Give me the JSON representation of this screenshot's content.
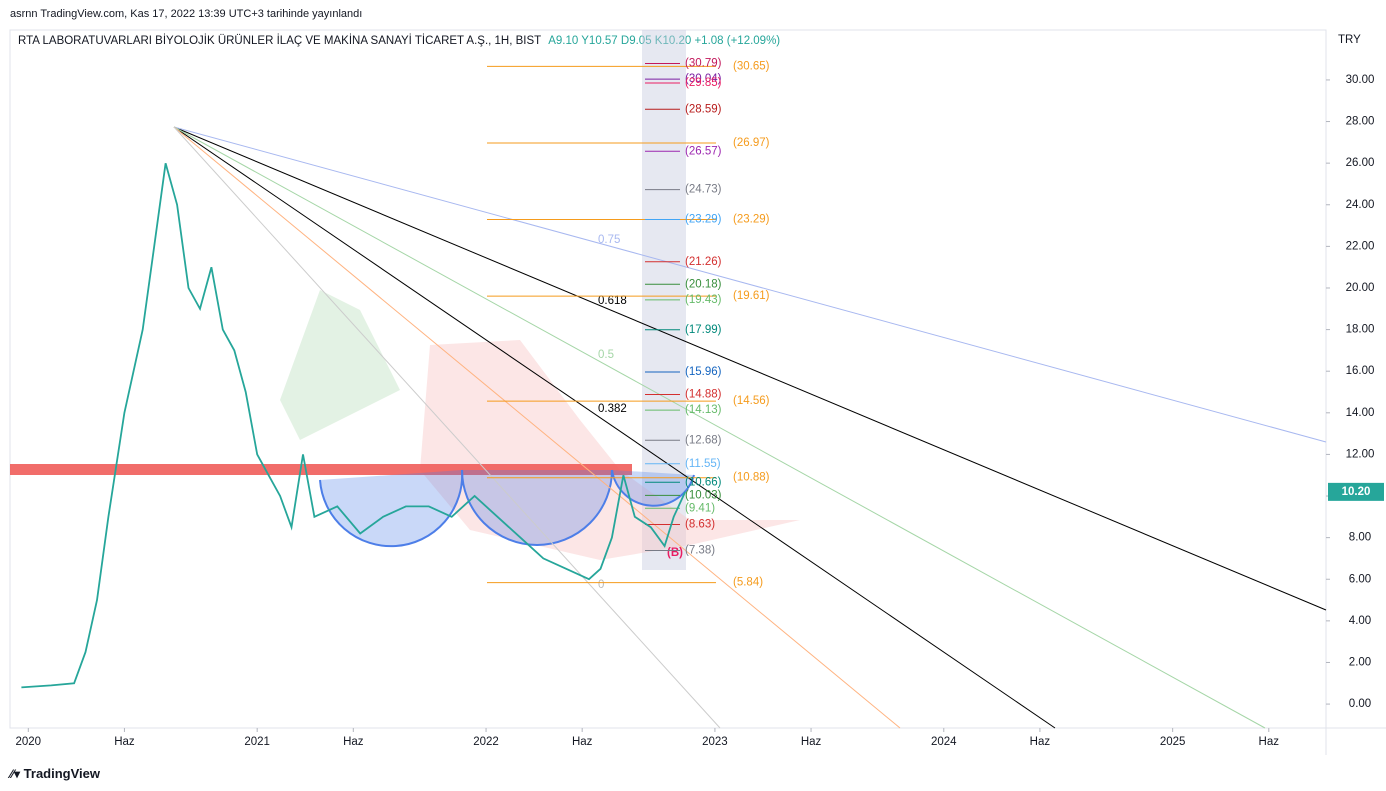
{
  "header": {
    "published": "asrnn TradingView.com, Kas 17, 2022 13:39 UTC+3 tarihinde yayınlandı",
    "symbol": "RTA LABORATUVARLARI BİYOLOJİK ÜRÜNLER İLAÇ VE MAKİNA SANAYİ TİCARET A.Ş., 1H, BIST",
    "ohlc": [
      "A9.10",
      "Y10.57",
      "D9.05",
      "K10.20",
      "+1.08 (+12.09%)"
    ]
  },
  "footer": {
    "brand": "TradingView"
  },
  "chart_data": {
    "type": "line",
    "currency": "TRY",
    "x": [
      2019.97,
      2020.1,
      2020.2,
      2020.25,
      2020.3,
      2020.35,
      2020.42,
      2020.5,
      2020.55,
      2020.6,
      2020.65,
      2020.7,
      2020.75,
      2020.8,
      2020.85,
      2020.9,
      2020.95,
      2021.0,
      2021.05,
      2021.1,
      2021.15,
      2021.2,
      2021.25,
      2021.35,
      2021.45,
      2021.55,
      2021.65,
      2021.75,
      2021.85,
      2021.95,
      2022.05,
      2022.15,
      2022.25,
      2022.35,
      2022.45,
      2022.5,
      2022.55,
      2022.6,
      2022.65,
      2022.72,
      2022.78,
      2022.82,
      2022.87
    ],
    "series": [
      {
        "name": "RTA",
        "color": "#26a69a",
        "values": [
          0.8,
          0.9,
          1.0,
          2.5,
          5,
          9,
          14,
          18,
          22,
          26,
          24,
          20,
          19,
          21,
          18,
          17,
          15,
          12,
          11,
          10,
          8.5,
          12,
          9,
          9.5,
          8.2,
          9,
          9.5,
          9.5,
          9,
          10,
          9,
          8,
          7,
          6.5,
          6,
          6.5,
          8,
          11,
          9,
          8.5,
          7.6,
          9,
          10.2
        ]
      }
    ],
    "last_price": {
      "value": 10.2,
      "label": "10.20",
      "color": "#26a69a"
    },
    "xlim": [
      2019.92,
      2025.67
    ],
    "xticks": [
      {
        "value": 2020,
        "label": "2020"
      },
      {
        "value": 2020.42,
        "label": "Haz"
      },
      {
        "value": 2021,
        "label": "2021"
      },
      {
        "value": 2021.42,
        "label": "Haz"
      },
      {
        "value": 2022,
        "label": "2022"
      },
      {
        "value": 2022.42,
        "label": "Haz"
      },
      {
        "value": 2023,
        "label": "2023"
      },
      {
        "value": 2023.42,
        "label": "Haz"
      },
      {
        "value": 2024,
        "label": "2024"
      },
      {
        "value": 2024.42,
        "label": "Haz"
      },
      {
        "value": 2025,
        "label": "2025"
      },
      {
        "value": 2025.42,
        "label": "Haz"
      }
    ],
    "ylim": [
      -1.15,
      32.4
    ],
    "yticks": [
      {
        "value": 0,
        "label": "0.00"
      },
      {
        "value": 2,
        "label": "2.00"
      },
      {
        "value": 4,
        "label": "4.00"
      },
      {
        "value": 6,
        "label": "6.00"
      },
      {
        "value": 8,
        "label": "8.00"
      },
      {
        "value": 10,
        "label": "10.00"
      },
      {
        "value": 12,
        "label": "12.00"
      },
      {
        "value": 14,
        "label": "14.00"
      },
      {
        "value": 16,
        "label": "16.00"
      },
      {
        "value": 18,
        "label": "18.00"
      },
      {
        "value": 20,
        "label": "20.00"
      },
      {
        "value": 22,
        "label": "22.00"
      },
      {
        "value": 24,
        "label": "24.00"
      },
      {
        "value": 26,
        "label": "26.00"
      },
      {
        "value": 28,
        "label": "28.00"
      },
      {
        "value": 30,
        "label": "30.00"
      }
    ],
    "levels": [
      {
        "value": 30.79,
        "label": "(30.79)",
        "color": "#c2185b"
      },
      {
        "value": 30.04,
        "label": "(30.04)",
        "color": "#7b1fa2"
      },
      {
        "value": 29.85,
        "label": "(29.85)",
        "color": "#e91e63"
      },
      {
        "value": 28.59,
        "label": "(28.59)",
        "color": "#b71c1c"
      },
      {
        "value": 26.57,
        "label": "(26.57)",
        "color": "#9c27b0"
      },
      {
        "value": 24.73,
        "label": "(24.73)",
        "color": "#787b86"
      },
      {
        "value": 23.29,
        "label": "(23.29)",
        "color": "#42a5f5"
      },
      {
        "value": 21.26,
        "label": "(21.26)",
        "color": "#d32f2f"
      },
      {
        "value": 20.18,
        "label": "(20.18)",
        "color": "#388e3c"
      },
      {
        "value": 19.43,
        "label": "(19.43)",
        "color": "#66bb6a"
      },
      {
        "value": 17.99,
        "label": "(17.99)",
        "color": "#00897b"
      },
      {
        "value": 15.96,
        "label": "(15.96)",
        "color": "#1565c0"
      },
      {
        "value": 14.88,
        "label": "(14.88)",
        "color": "#d32f2f"
      },
      {
        "value": 14.13,
        "label": "(14.13)",
        "color": "#66bb6a"
      },
      {
        "value": 12.68,
        "label": "(12.68)",
        "color": "#787b86"
      },
      {
        "value": 11.55,
        "label": "(11.55)",
        "color": "#64b5f6"
      },
      {
        "value": 10.66,
        "label": "(10.66)",
        "color": "#00897b"
      },
      {
        "value": 10.03,
        "label": "(10.03)",
        "color": "#388e3c"
      },
      {
        "value": 9.41,
        "label": "(9.41)",
        "color": "#66bb6a"
      },
      {
        "value": 8.63,
        "label": "(8.63)",
        "color": "#d32f2f"
      },
      {
        "value": 7.38,
        "label": "(7.38)",
        "color": "#787b86"
      }
    ],
    "fib_levels": [
      {
        "value": 30.65,
        "label": "(30.65)"
      },
      {
        "value": 26.97,
        "label": "(26.97)"
      },
      {
        "value": 23.29,
        "label": "(23.29)"
      },
      {
        "value": 19.61,
        "label": "(19.61)"
      },
      {
        "value": 14.56,
        "label": "(14.56)"
      },
      {
        "value": 10.88,
        "label": "(10.88)"
      },
      {
        "value": 5.84,
        "label": "(5.84)"
      }
    ],
    "fib_color": "#f59b1c",
    "fan_labels": [
      "0.75",
      "0.618",
      "0.5",
      "0.382",
      "0"
    ],
    "point_label": "(B)"
  }
}
